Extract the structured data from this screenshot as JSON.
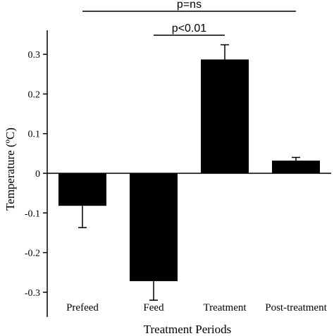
{
  "chart_data": {
    "type": "bar",
    "categories": [
      "Prefeed",
      "Feed",
      "Treatment",
      "Post-treatment"
    ],
    "values": [
      -0.082,
      -0.272,
      0.287,
      0.032
    ],
    "errors": [
      0.055,
      0.048,
      0.037,
      0.008
    ],
    "error_direction": [
      "down",
      "down",
      "up",
      "up"
    ],
    "xlabel": "Treatment Periods",
    "ylabel": "Temperature (ºC)",
    "ylim": [
      -0.35,
      0.36
    ],
    "yticks": [
      0.3,
      0.2,
      0.1,
      0,
      -0.1,
      -0.2,
      -0.3
    ],
    "ytick_labels": [
      "0.3",
      "0.2",
      "0.1",
      "0",
      "-0.1",
      "-0.2",
      "-0.3"
    ],
    "grid": false,
    "significance": [
      {
        "label": "p=ns",
        "from": "Prefeed",
        "to": "Post-treatment"
      },
      {
        "label": "p<0.01",
        "from": "Feed",
        "to": "Treatment"
      }
    ],
    "bar_color": "#000000"
  }
}
